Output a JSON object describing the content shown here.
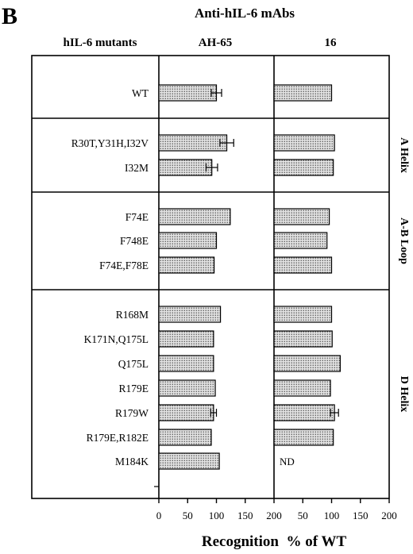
{
  "figure": {
    "panel_letter": "B",
    "title": "Anti-hIL-6 mAbs",
    "row_header": "hIL-6 mutants",
    "column_headers": [
      "AH-65",
      "16"
    ]
  },
  "chart_data": {
    "type": "bar",
    "orientation": "horizontal",
    "title": "Anti-hIL-6 mAbs",
    "xlabel": "Recognition  % of WT",
    "ylabel": "hIL-6 mutants",
    "xlim": [
      0,
      200
    ],
    "x_ticks": [
      "0",
      "50",
      "100",
      "150",
      "200"
    ],
    "x_ticks_right": [
      "50",
      "100",
      "150",
      "200"
    ],
    "grid": false,
    "bar_fill": "dotted gray",
    "categories": [
      "WT",
      "R30T,Y31H,I32V",
      "I32M",
      "F74E",
      "F748E",
      "F74E,F78E",
      "R168M",
      "K171N,Q175L",
      "Q175L",
      "R179E",
      "R179W",
      "R179E,R182E",
      "M184K"
    ],
    "regions": [
      {
        "label": "",
        "categories": [
          "WT"
        ]
      },
      {
        "label": "A Helix",
        "categories": [
          "R30T,Y31H,I32V",
          "I32M"
        ]
      },
      {
        "label": "A-B Loop",
        "categories": [
          "F74E",
          "F748E",
          "F74E,F78E"
        ]
      },
      {
        "label": "D Helix",
        "categories": [
          "R168M",
          "K171N,Q175L",
          "Q175L",
          "R179E",
          "R179W",
          "R179E,R182E",
          "M184K"
        ]
      }
    ],
    "series": [
      {
        "name": "AH-65",
        "values": [
          100,
          118,
          92,
          124,
          100,
          96,
          107,
          95,
          95,
          98,
          95,
          91,
          105
        ],
        "errors": [
          9,
          12,
          10,
          null,
          null,
          null,
          null,
          null,
          null,
          null,
          5,
          null,
          null
        ]
      },
      {
        "name": "16",
        "values": [
          100,
          105,
          103,
          96,
          92,
          100,
          100,
          101,
          115,
          98,
          105,
          103,
          null
        ],
        "errors": [
          null,
          null,
          null,
          null,
          null,
          null,
          null,
          null,
          null,
          null,
          7,
          null,
          null
        ],
        "annotations": {
          "M184K": "ND"
        }
      }
    ]
  }
}
